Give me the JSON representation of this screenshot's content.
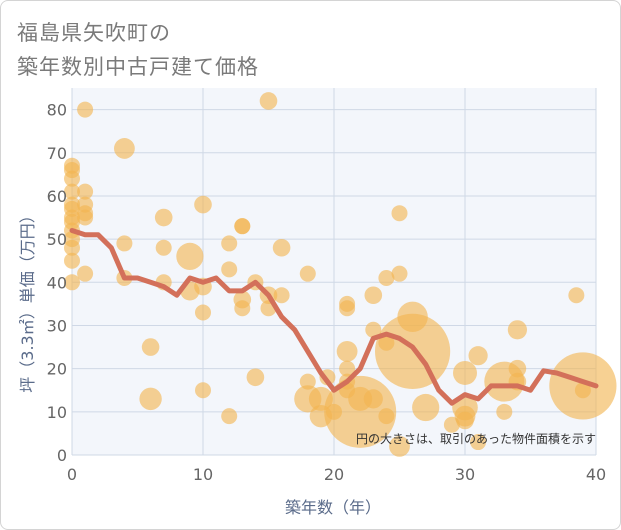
{
  "chart_data": {
    "type": "scatter",
    "title": [
      "福島県矢吹町の",
      "築年数別中古戸建て価格"
    ],
    "xlabel": "築年数（年）",
    "ylabel": "坪（3.3㎡）単価（万円）",
    "xlim": [
      0,
      40
    ],
    "ylim": [
      0,
      85
    ],
    "xticks": [
      0,
      10,
      20,
      30,
      40
    ],
    "yticks": [
      0,
      10,
      20,
      30,
      40,
      50,
      60,
      70,
      80
    ],
    "note": "円の大きさは、取引のあった物件面積を示す",
    "colors": {
      "bubble": "#f2b450",
      "line": "#d3705a",
      "grid": "#cfd8e6",
      "plot_bg": "#f3f6fb"
    },
    "points": [
      {
        "x": 0,
        "y": 67,
        "s": 1
      },
      {
        "x": 0,
        "y": 66,
        "s": 1
      },
      {
        "x": 0,
        "y": 64,
        "s": 1
      },
      {
        "x": 0,
        "y": 61,
        "s": 1
      },
      {
        "x": 0,
        "y": 58,
        "s": 1
      },
      {
        "x": 0,
        "y": 57,
        "s": 1
      },
      {
        "x": 0,
        "y": 55,
        "s": 1
      },
      {
        "x": 0,
        "y": 54,
        "s": 1
      },
      {
        "x": 0,
        "y": 52,
        "s": 1
      },
      {
        "x": 0,
        "y": 50,
        "s": 1
      },
      {
        "x": 0,
        "y": 48,
        "s": 1
      },
      {
        "x": 0,
        "y": 45,
        "s": 1
      },
      {
        "x": 0,
        "y": 40,
        "s": 1
      },
      {
        "x": 1,
        "y": 80,
        "s": 1
      },
      {
        "x": 1,
        "y": 61,
        "s": 1
      },
      {
        "x": 1,
        "y": 58,
        "s": 1
      },
      {
        "x": 1,
        "y": 56,
        "s": 1
      },
      {
        "x": 1,
        "y": 55,
        "s": 1
      },
      {
        "x": 1,
        "y": 42,
        "s": 1
      },
      {
        "x": 4,
        "y": 71,
        "s": 1.3
      },
      {
        "x": 4,
        "y": 49,
        "s": 1
      },
      {
        "x": 4,
        "y": 41,
        "s": 1
      },
      {
        "x": 6,
        "y": 25,
        "s": 1.1
      },
      {
        "x": 6,
        "y": 13,
        "s": 1.4
      },
      {
        "x": 7,
        "y": 55,
        "s": 1.1
      },
      {
        "x": 7,
        "y": 48,
        "s": 1
      },
      {
        "x": 7,
        "y": 40,
        "s": 1
      },
      {
        "x": 9,
        "y": 46,
        "s": 1.7
      },
      {
        "x": 9,
        "y": 38,
        "s": 1.2
      },
      {
        "x": 10,
        "y": 58,
        "s": 1.1
      },
      {
        "x": 10,
        "y": 39,
        "s": 1.1
      },
      {
        "x": 10,
        "y": 33,
        "s": 1
      },
      {
        "x": 10,
        "y": 15,
        "s": 1
      },
      {
        "x": 12,
        "y": 49,
        "s": 1
      },
      {
        "x": 12,
        "y": 43,
        "s": 1
      },
      {
        "x": 12,
        "y": 9,
        "s": 1
      },
      {
        "x": 13,
        "y": 53,
        "s": 1
      },
      {
        "x": 13,
        "y": 53,
        "s": 1
      },
      {
        "x": 13,
        "y": 36,
        "s": 1.1
      },
      {
        "x": 13,
        "y": 34,
        "s": 1
      },
      {
        "x": 14,
        "y": 40,
        "s": 1
      },
      {
        "x": 14,
        "y": 18,
        "s": 1.1
      },
      {
        "x": 15,
        "y": 82,
        "s": 1.1
      },
      {
        "x": 15,
        "y": 37,
        "s": 1.1
      },
      {
        "x": 15,
        "y": 34,
        "s": 1
      },
      {
        "x": 16,
        "y": 48,
        "s": 1.1
      },
      {
        "x": 16,
        "y": 37,
        "s": 1
      },
      {
        "x": 18,
        "y": 42,
        "s": 1
      },
      {
        "x": 18,
        "y": 17,
        "s": 1
      },
      {
        "x": 18,
        "y": 13,
        "s": 1.7
      },
      {
        "x": 19,
        "y": 13,
        "s": 1.5
      },
      {
        "x": 19,
        "y": 9,
        "s": 1.4
      },
      {
        "x": 19.5,
        "y": 18,
        "s": 1
      },
      {
        "x": 20,
        "y": 10,
        "s": 1
      },
      {
        "x": 21,
        "y": 35,
        "s": 1
      },
      {
        "x": 21,
        "y": 34,
        "s": 1
      },
      {
        "x": 21,
        "y": 24,
        "s": 1.3
      },
      {
        "x": 21,
        "y": 20,
        "s": 1
      },
      {
        "x": 21,
        "y": 17,
        "s": 1
      },
      {
        "x": 21,
        "y": 15,
        "s": 1
      },
      {
        "x": 22,
        "y": 10,
        "s": 4.5
      },
      {
        "x": 22,
        "y": 13,
        "s": 1.5
      },
      {
        "x": 23,
        "y": 37,
        "s": 1.1
      },
      {
        "x": 23,
        "y": 29,
        "s": 1
      },
      {
        "x": 23,
        "y": 13,
        "s": 1.2
      },
      {
        "x": 24,
        "y": 41,
        "s": 1
      },
      {
        "x": 24,
        "y": 26,
        "s": 1
      },
      {
        "x": 24,
        "y": 9,
        "s": 1
      },
      {
        "x": 25,
        "y": 56,
        "s": 1
      },
      {
        "x": 25,
        "y": 42,
        "s": 1
      },
      {
        "x": 25,
        "y": 2,
        "s": 1.3
      },
      {
        "x": 26,
        "y": 32,
        "s": 1.9
      },
      {
        "x": 26,
        "y": 24,
        "s": 4.7
      },
      {
        "x": 27,
        "y": 11,
        "s": 1.7
      },
      {
        "x": 29,
        "y": 7,
        "s": 1
      },
      {
        "x": 30,
        "y": 19,
        "s": 1.5
      },
      {
        "x": 30,
        "y": 11,
        "s": 1.6
      },
      {
        "x": 30,
        "y": 9,
        "s": 1.3
      },
      {
        "x": 30,
        "y": 8,
        "s": 1.1
      },
      {
        "x": 31,
        "y": 23,
        "s": 1.2
      },
      {
        "x": 31,
        "y": 3,
        "s": 1
      },
      {
        "x": 33,
        "y": 17,
        "s": 2.5
      },
      {
        "x": 33,
        "y": 10,
        "s": 1
      },
      {
        "x": 34,
        "y": 29,
        "s": 1.2
      },
      {
        "x": 34,
        "y": 20,
        "s": 1.1
      },
      {
        "x": 34,
        "y": 17,
        "s": 1.1
      },
      {
        "x": 38.5,
        "y": 37,
        "s": 1
      },
      {
        "x": 39,
        "y": 16,
        "s": 4.2
      },
      {
        "x": 39,
        "y": 15,
        "s": 1
      }
    ],
    "trend": {
      "x": [
        0,
        1,
        2,
        3,
        4,
        5,
        6,
        7,
        8,
        9,
        10,
        11,
        12,
        13,
        14,
        15,
        16,
        17,
        18,
        19,
        20,
        21,
        22,
        23,
        24,
        25,
        26,
        27,
        28,
        29,
        30,
        31,
        32,
        33,
        34,
        35,
        36,
        37,
        38,
        39,
        40
      ],
      "y": [
        52,
        51,
        51,
        48,
        41,
        41,
        40,
        39,
        37,
        41,
        40,
        41,
        38,
        38,
        40,
        37,
        32,
        29,
        24,
        19,
        15,
        17,
        20,
        27,
        28,
        27,
        25,
        21,
        15,
        12,
        14,
        13,
        16,
        16,
        16,
        15,
        19.5,
        19,
        18,
        17,
        16
      ]
    }
  }
}
